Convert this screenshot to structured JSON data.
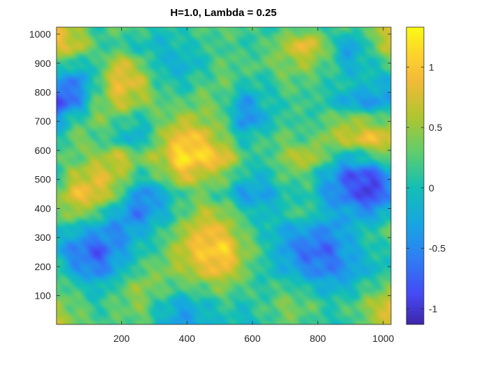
{
  "chart_data": {
    "type": "heatmap",
    "title": "H=1.0, Lambda = 0.25",
    "xlabel": "",
    "ylabel": "",
    "xlim": [
      1,
      1024
    ],
    "ylim": [
      1,
      1024
    ],
    "clim": [
      -1.13,
      1.33
    ],
    "colormap": "parula",
    "colorbar": {
      "location": "right",
      "ticks": [
        -1,
        -0.5,
        0,
        0.5,
        1
      ],
      "tick_labels": [
        "-1",
        "-0.5",
        "0",
        "0.5",
        "1"
      ]
    },
    "x_ticks": [
      200,
      400,
      600,
      800,
      1000
    ],
    "x_tick_labels": [
      "200",
      "400",
      "600",
      "800",
      "1000"
    ],
    "y_ticks": [
      100,
      200,
      300,
      400,
      500,
      600,
      700,
      800,
      900,
      1000
    ],
    "y_tick_labels": [
      "100",
      "200",
      "300",
      "400",
      "500",
      "600",
      "700",
      "800",
      "900",
      "1000"
    ],
    "grid_x": [
      0,
      64,
      128,
      192,
      256,
      320,
      384,
      448,
      512,
      576,
      640,
      704,
      768,
      832,
      896,
      960,
      1024
    ],
    "grid_y": [
      1024,
      960,
      896,
      832,
      768,
      704,
      640,
      576,
      512,
      448,
      384,
      320,
      256,
      192,
      128,
      64,
      0
    ],
    "z": [
      [
        0.9,
        0.5,
        0.1,
        0.3,
        0.2,
        0.0,
        0.1,
        0.2,
        0.3,
        0.2,
        0.1,
        0.2,
        0.3,
        0.1,
        0.2,
        0.3,
        0.9
      ],
      [
        0.8,
        0.7,
        0.2,
        0.1,
        0.0,
        -0.1,
        0.0,
        0.1,
        0.2,
        0.1,
        0.2,
        0.6,
        0.9,
        0.3,
        -0.4,
        0.2,
        0.7
      ],
      [
        0.2,
        0.0,
        0.1,
        0.8,
        0.4,
        -0.1,
        -0.2,
        0.0,
        0.3,
        0.2,
        0.3,
        0.4,
        0.5,
        0.2,
        -0.2,
        0.0,
        0.2
      ],
      [
        -0.4,
        -0.6,
        0.2,
        0.9,
        0.7,
        0.1,
        0.0,
        0.2,
        0.3,
        0.1,
        0.0,
        0.3,
        0.2,
        0.1,
        0.0,
        -0.1,
        -0.2
      ],
      [
        -1.0,
        -0.5,
        0.3,
        0.7,
        0.5,
        0.3,
        0.2,
        0.4,
        0.2,
        -0.4,
        0.0,
        0.1,
        0.2,
        0.0,
        -0.3,
        -0.4,
        -0.3
      ],
      [
        -0.3,
        0.1,
        0.4,
        0.2,
        0.0,
        0.3,
        0.6,
        0.5,
        0.3,
        -0.5,
        -0.2,
        0.2,
        0.1,
        0.3,
        0.5,
        0.4,
        0.3
      ],
      [
        0.0,
        0.4,
        0.2,
        0.0,
        -0.2,
        0.5,
        1.0,
        0.9,
        0.4,
        0.0,
        0.2,
        0.3,
        0.2,
        0.5,
        0.7,
        0.9,
        0.8
      ],
      [
        0.2,
        0.3,
        0.5,
        0.7,
        0.4,
        0.6,
        1.2,
        1.1,
        0.9,
        0.2,
        0.1,
        0.5,
        0.7,
        0.2,
        -0.2,
        0.1,
        0.3
      ],
      [
        0.1,
        0.6,
        0.8,
        0.6,
        0.1,
        0.3,
        0.8,
        0.6,
        0.4,
        0.0,
        -0.1,
        0.3,
        0.2,
        -0.3,
        -0.8,
        -0.9,
        -0.4
      ],
      [
        0.4,
        0.9,
        0.8,
        0.3,
        -0.5,
        -0.3,
        0.2,
        0.3,
        0.1,
        -0.4,
        -0.3,
        0.0,
        0.1,
        -0.4,
        -0.7,
        -1.0,
        -0.5
      ],
      [
        0.3,
        0.5,
        0.2,
        -0.3,
        -0.6,
        -0.2,
        0.2,
        0.6,
        0.5,
        0.1,
        -0.1,
        0.1,
        0.2,
        -0.2,
        -0.3,
        -0.4,
        -0.1
      ],
      [
        0.0,
        -0.2,
        -0.4,
        -0.5,
        -0.2,
        0.1,
        0.5,
        0.9,
        0.8,
        0.3,
        0.0,
        -0.3,
        -0.4,
        -0.5,
        -0.2,
        0.1,
        0.3
      ],
      [
        -0.2,
        -0.6,
        -0.8,
        -0.4,
        0.0,
        0.2,
        0.7,
        1.0,
        1.1,
        0.5,
        0.1,
        -0.4,
        -0.7,
        -0.7,
        -0.3,
        0.0,
        0.1
      ],
      [
        0.1,
        -0.4,
        -0.6,
        -0.2,
        0.2,
        0.4,
        0.5,
        0.8,
        0.9,
        0.4,
        0.0,
        -0.2,
        -0.5,
        -0.6,
        -0.4,
        -0.1,
        0.0
      ],
      [
        0.3,
        0.1,
        -0.1,
        0.2,
        0.5,
        0.3,
        0.2,
        0.3,
        0.4,
        0.2,
        0.1,
        0.2,
        0.0,
        -0.2,
        -0.1,
        0.2,
        0.4
      ],
      [
        0.5,
        0.3,
        0.1,
        0.3,
        0.4,
        0.0,
        -0.3,
        -0.1,
        0.1,
        0.0,
        0.2,
        0.4,
        0.3,
        0.1,
        0.2,
        0.5,
        0.9
      ],
      [
        0.6,
        0.4,
        0.2,
        0.2,
        0.3,
        -0.1,
        -0.4,
        -0.2,
        0.0,
        -0.1,
        0.1,
        0.3,
        0.2,
        0.0,
        0.1,
        0.4,
        0.8
      ]
    ]
  },
  "figure": {
    "background": "#ffffff",
    "axis_color": "#262626"
  }
}
